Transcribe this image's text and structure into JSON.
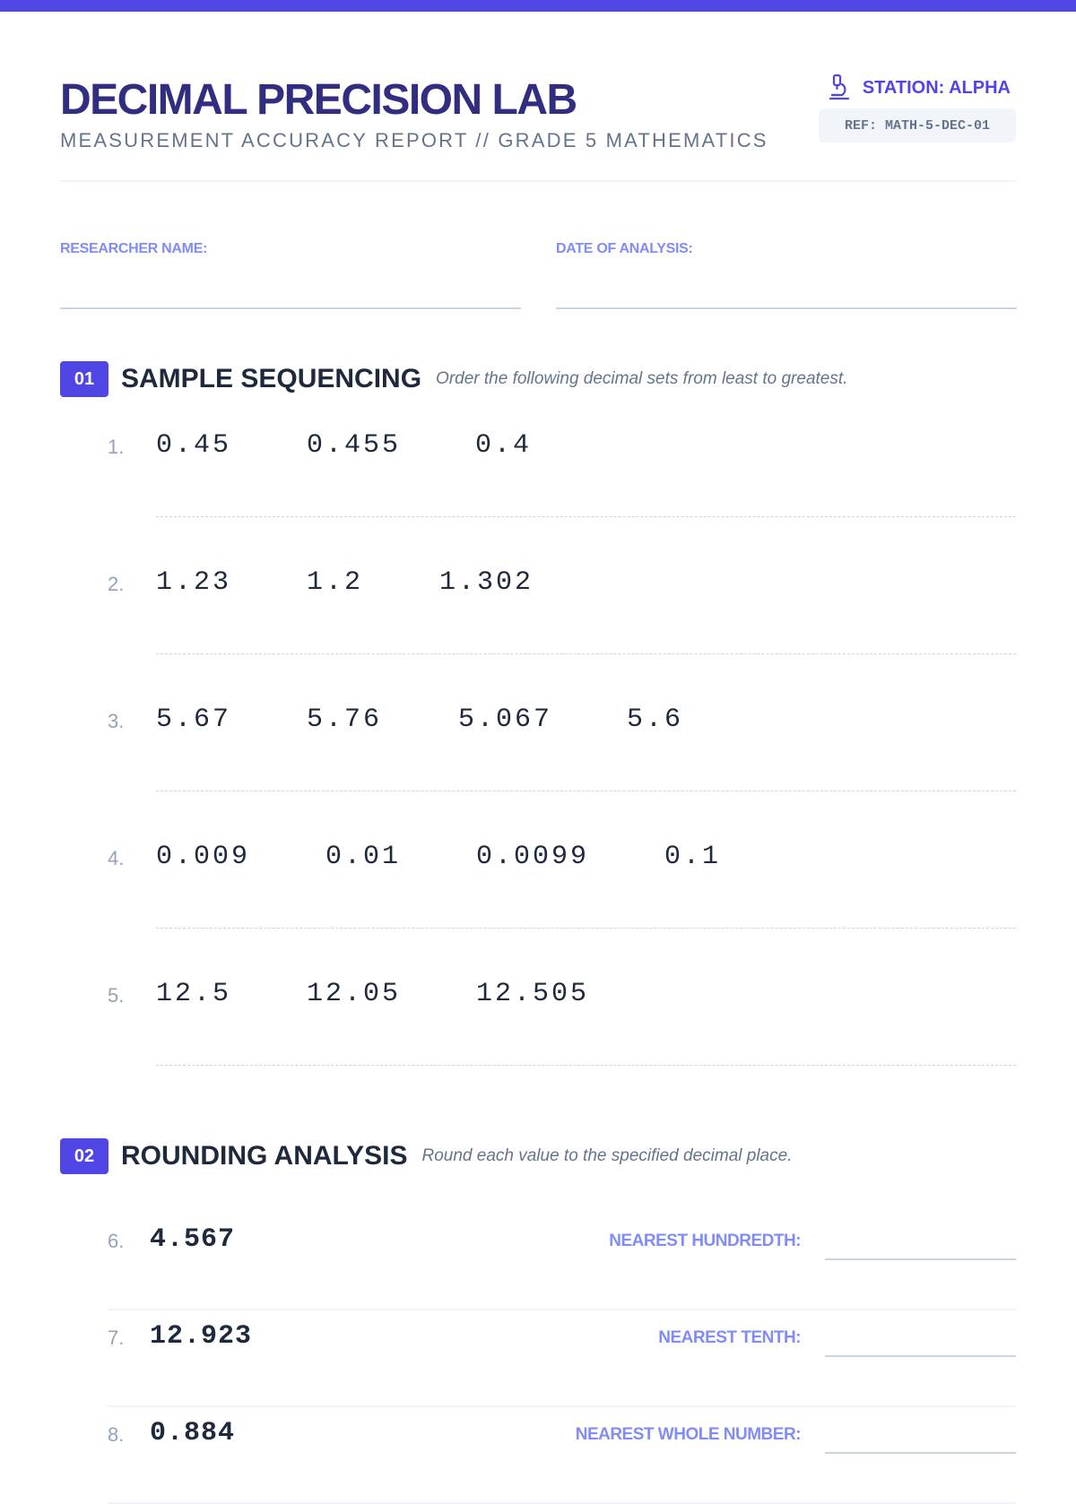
{
  "header": {
    "title": "DECIMAL PRECISION LAB",
    "subtitle": "MEASUREMENT ACCURACY REPORT // GRADE 5 MATHEMATICS",
    "station": "STATION: ALPHA",
    "station_icon": "microscope-icon",
    "ref": "REF: MATH-5-DEC-01"
  },
  "fields": {
    "researcher": "RESEARCHER NAME:",
    "date": "DATE OF ANALYSIS:"
  },
  "section1": {
    "number": "01",
    "title": "SAMPLE SEQUENCING",
    "instruction": "Order the following decimal sets from least to greatest.",
    "items": [
      {
        "n": "1.",
        "values": [
          "0.45",
          "0.455",
          "0.4"
        ]
      },
      {
        "n": "2.",
        "values": [
          "1.23",
          "1.2",
          "1.302"
        ]
      },
      {
        "n": "3.",
        "values": [
          "5.67",
          "5.76",
          "5.067",
          "5.6"
        ]
      },
      {
        "n": "4.",
        "values": [
          "0.009",
          "0.01",
          "0.0099",
          "0.1"
        ]
      },
      {
        "n": "5.",
        "values": [
          "12.5",
          "12.05",
          "12.505"
        ]
      }
    ]
  },
  "section2": {
    "number": "02",
    "title": "ROUNDING ANALYSIS",
    "instruction": "Round each value to the specified decimal place.",
    "items": [
      {
        "n": "6.",
        "value": "4.567",
        "label": "NEAREST HUNDREDTH:"
      },
      {
        "n": "7.",
        "value": "12.923",
        "label": "NEAREST TENTH:"
      },
      {
        "n": "8.",
        "value": "0.884",
        "label": "NEAREST WHOLE NUMBER:"
      }
    ]
  },
  "colors": {
    "accent": "#4f46e5",
    "title": "#312e81",
    "label": "#818cf8"
  }
}
